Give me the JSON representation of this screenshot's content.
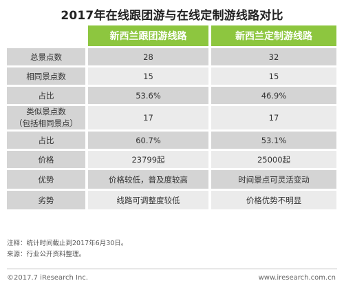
{
  "title": "2017年在线跟团游与在线定制游线路对比",
  "chart_data": {
    "type": "table",
    "columns": [
      "",
      "新西兰跟团游线路",
      "新西兰定制游线路"
    ],
    "rows": [
      {
        "label": "总景点数",
        "values": [
          "28",
          "32"
        ]
      },
      {
        "label": "相同景点数",
        "values": [
          "15",
          "15"
        ]
      },
      {
        "label": "占比",
        "values": [
          "53.6%",
          "46.9%"
        ]
      },
      {
        "label": "类似景点数\n（包括相同景点）",
        "label_lines": [
          "类似景点数",
          "（包括相同景点）"
        ],
        "values": [
          "17",
          "17"
        ]
      },
      {
        "label": "占比",
        "values": [
          "60.7%",
          "53.1%"
        ]
      },
      {
        "label": "价格",
        "values": [
          "23799起",
          "25000起"
        ]
      },
      {
        "label": "优势",
        "values": [
          "价格较低，普及度较高",
          "时间景点可灵活变动"
        ]
      },
      {
        "label": "劣势",
        "values": [
          "线路可调整度较低",
          "价格优势不明显"
        ]
      }
    ]
  },
  "notes": {
    "note1": "注释：统计时间截止到2017年6月30日。",
    "note2": "来源：行业公开资料整理。"
  },
  "footer": {
    "copyright": "©2017.7 iResearch Inc.",
    "website": "www.iresearch.com.cn"
  },
  "colors": {
    "header_green": "#8dc63f",
    "row_dark": "#d4d4d4",
    "row_light": "#ebebeb"
  }
}
